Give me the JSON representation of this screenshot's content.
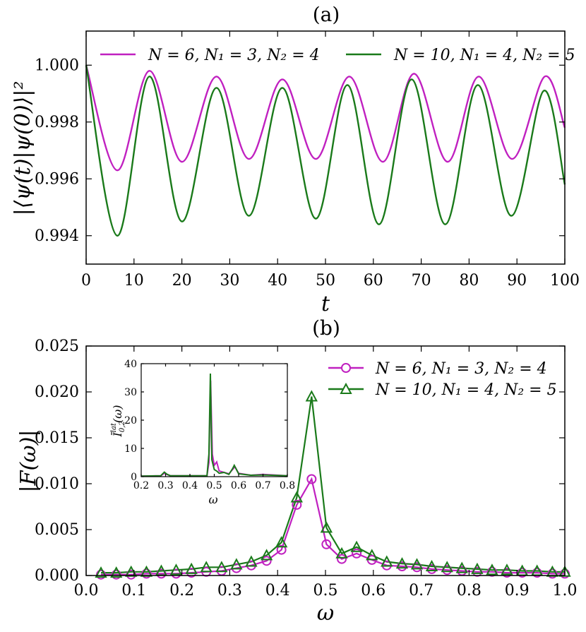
{
  "chart_data": [
    {
      "panel_label": "(a)",
      "type": "line",
      "xlabel": "t",
      "ylabel": "|⟨ψ(t)|ψ(0)⟩|²",
      "xlim": [
        0,
        100
      ],
      "ylim": [
        0.993,
        1.0012
      ],
      "xticks": [
        "0",
        "10",
        "20",
        "30",
        "40",
        "50",
        "60",
        "70",
        "80",
        "90",
        "100"
      ],
      "yticks": [
        "0.994",
        "0.996",
        "0.998",
        "1.000"
      ],
      "legend_position": "top",
      "series": [
        {
          "name": "N = 6, N₁ = 3, N₂ = 4",
          "color": "#c020c0",
          "x": [
            0,
            6.5,
            13.2,
            20,
            27.2,
            34,
            41,
            48,
            55,
            62,
            68.5,
            75.5,
            82,
            89,
            95.8,
            100
          ],
          "y": [
            1.0,
            0.9963,
            0.9998,
            0.9966,
            0.9996,
            0.9967,
            0.9995,
            0.9967,
            0.9996,
            0.9966,
            0.9997,
            0.9966,
            0.9996,
            0.9967,
            0.9996,
            0.9978
          ]
        },
        {
          "name": "N = 10, N₁ = 4, N₂ = 5",
          "color": "#1a7a1a",
          "x": [
            0,
            6.5,
            13.2,
            20,
            27.2,
            34,
            41,
            48,
            54.6,
            61.2,
            68,
            75,
            81.8,
            88.8,
            95.6,
            100
          ],
          "y": [
            1.0,
            0.994,
            0.9996,
            0.9945,
            0.9992,
            0.9947,
            0.9992,
            0.9946,
            0.9993,
            0.9944,
            0.9995,
            0.9944,
            0.9993,
            0.9947,
            0.9991,
            0.9958
          ]
        }
      ]
    },
    {
      "panel_label": "(b)",
      "type": "line",
      "xlabel": "ω",
      "ylabel": "|F(ω)|",
      "xlim": [
        0,
        1
      ],
      "ylim": [
        0,
        0.025
      ],
      "xticks": [
        "0.0",
        "0.1",
        "0.2",
        "0.3",
        "0.4",
        "0.5",
        "0.6",
        "0.7",
        "0.8",
        "0.9",
        "1.0"
      ],
      "yticks": [
        "0.000",
        "0.005",
        "0.010",
        "0.015",
        "0.020",
        "0.025"
      ],
      "legend_position": "top-right",
      "series": [
        {
          "name": "N = 6, N₁ = 3, N₂ = 4",
          "color": "#c020c0",
          "marker": "circle",
          "x": [
            0.031,
            0.063,
            0.094,
            0.126,
            0.157,
            0.188,
            0.22,
            0.251,
            0.283,
            0.314,
            0.345,
            0.377,
            0.408,
            0.44,
            0.471,
            0.502,
            0.534,
            0.565,
            0.597,
            0.628,
            0.66,
            0.691,
            0.722,
            0.754,
            0.785,
            0.817,
            0.848,
            0.879,
            0.911,
            0.942,
            0.974,
            1.005
          ],
          "y": [
            0.0001,
            0.0001,
            0.0001,
            0.0002,
            0.0002,
            0.0002,
            0.0003,
            0.0004,
            0.0005,
            0.0008,
            0.0011,
            0.0016,
            0.0028,
            0.0077,
            0.0105,
            0.0034,
            0.0018,
            0.0024,
            0.0017,
            0.0011,
            0.001,
            0.0009,
            0.0007,
            0.0006,
            0.0005,
            0.0004,
            0.0004,
            0.0003,
            0.0003,
            0.0003,
            0.0002,
            0.0002
          ]
        },
        {
          "name": "N = 10, N₁ = 4, N₂ = 5",
          "color": "#1a7a1a",
          "marker": "triangle",
          "x": [
            0.031,
            0.063,
            0.094,
            0.126,
            0.157,
            0.188,
            0.22,
            0.251,
            0.283,
            0.314,
            0.345,
            0.377,
            0.408,
            0.44,
            0.471,
            0.502,
            0.534,
            0.565,
            0.597,
            0.628,
            0.66,
            0.691,
            0.722,
            0.754,
            0.785,
            0.817,
            0.848,
            0.879,
            0.911,
            0.942,
            0.974,
            1.005
          ],
          "y": [
            0.0003,
            0.0003,
            0.0004,
            0.0004,
            0.0005,
            0.0006,
            0.0007,
            0.0009,
            0.0009,
            0.0012,
            0.0015,
            0.0022,
            0.0036,
            0.0085,
            0.0195,
            0.0052,
            0.0024,
            0.0031,
            0.0022,
            0.0015,
            0.0013,
            0.0012,
            0.001,
            0.0009,
            0.0008,
            0.0007,
            0.0006,
            0.0006,
            0.0005,
            0.0005,
            0.0004,
            0.0004
          ]
        }
      ],
      "inset": {
        "xlabel": "ω",
        "ylabel": "Ī^lat_{0,2}(ω)",
        "ylabel_main": "Ī",
        "ylabel_sup": "lat",
        "ylabel_sub": "0,2",
        "ylabel_arg": "(ω)",
        "xlim": [
          0.2,
          0.8
        ],
        "ylim": [
          0,
          40
        ],
        "xticks": [
          "0.2",
          "0.3",
          "0.4",
          "0.5",
          "0.6",
          "0.7",
          "0.8"
        ],
        "yticks": [
          "0",
          "10",
          "20",
          "30",
          "40"
        ],
        "series": [
          {
            "name": "N = 6, N₁ = 3, N₂ = 4",
            "color": "#c020c0",
            "x": [
              0.2,
              0.28,
              0.295,
              0.305,
              0.32,
              0.47,
              0.478,
              0.485,
              0.492,
              0.5,
              0.51,
              0.52,
              0.54,
              0.56,
              0.575,
              0.585,
              0.6,
              0.65,
              0.7,
              0.8
            ],
            "y": [
              0.2,
              0.3,
              1.2,
              0.8,
              0.3,
              0.3,
              5,
              34,
              8,
              4,
              5.2,
              2,
              1.5,
              1,
              2.5,
              3.5,
              1.2,
              0.5,
              0.8,
              0.3
            ]
          },
          {
            "name": "N = 10, N₁ = 4, N₂ = 5",
            "color": "#1a7a1a",
            "x": [
              0.2,
              0.28,
              0.295,
              0.305,
              0.32,
              0.47,
              0.478,
              0.484,
              0.49,
              0.5,
              0.51,
              0.52,
              0.54,
              0.56,
              0.575,
              0.582,
              0.6,
              0.65,
              0.7,
              0.8
            ],
            "y": [
              0.2,
              0.3,
              1.6,
              0.9,
              0.3,
              0.3,
              8,
              36.5,
              6,
              2.5,
              2,
              1.2,
              1.5,
              0.8,
              2.8,
              4,
              1,
              0.5,
              0.6,
              0.3
            ]
          }
        ]
      }
    }
  ]
}
